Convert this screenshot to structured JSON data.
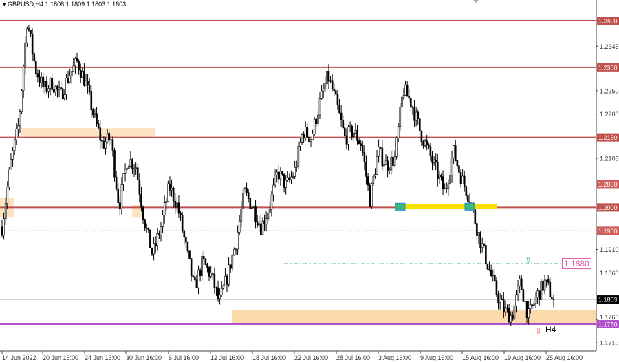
{
  "header": {
    "symbol": "GBPUSD,H4",
    "ohlc": "1.1808 1.1809 1.1803 1.1803"
  },
  "chart_data": {
    "type": "candlestick",
    "timeframe": "H4",
    "ylim": [
      1.169,
      1.2445
    ],
    "y_ticks": [
      "1.2345",
      "1.2250",
      "1.2200",
      "1.2105",
      "1.1910",
      "1.1860",
      "1.1760",
      "1.1710"
    ],
    "x_ticks": [
      "14 Jun 2022",
      "20 Jun 16:00",
      "24 Jun 16:00",
      "30 Jun 16:00",
      "6 Jul 16:00",
      "12 Jul 16:00",
      "18 Jul 16:00",
      "22 Jul 16:00",
      "28 Jul 16:00",
      "3 Aug 16:00",
      "9 Aug 16:00",
      "15 Aug 16:00",
      "19 Aug 16:00",
      "25 Aug 16:00"
    ],
    "approx_close_path": [
      1.1958,
      1.209,
      1.2179,
      1.24,
      1.2297,
      1.2253,
      1.2267,
      1.2238,
      1.2282,
      1.2312,
      1.2267,
      1.2194,
      1.2135,
      1.2149,
      1.2002,
      1.2105,
      1.209,
      1.1973,
      1.1899,
      1.1958,
      1.2046,
      1.2002,
      1.1914,
      1.1825,
      1.1884,
      1.1855,
      1.1796,
      1.1855,
      1.1928,
      1.2032,
      1.2002,
      1.1958,
      1.2002,
      1.2076,
      1.2046,
      1.2076,
      1.2164,
      1.2149,
      1.2223,
      1.2282,
      1.2223,
      1.2149,
      1.2164,
      1.2135,
      1.2017,
      1.212,
      1.209,
      1.2105,
      1.2253,
      1.2223,
      1.2164,
      1.212,
      1.2076,
      1.2032,
      1.212,
      1.2061,
      1.2017,
      1.1943,
      1.1884,
      1.1825,
      1.1781,
      1.1766,
      1.184,
      1.1766,
      1.1811,
      1.184,
      1.1803
    ],
    "levels": [
      {
        "price": 1.24,
        "label": "1.2400",
        "style": "solid",
        "color": "#c0504d"
      },
      {
        "price": 1.23,
        "label": "1.2300",
        "style": "solid",
        "color": "#c0504d"
      },
      {
        "price": 1.215,
        "label": "1.2150",
        "style": "solid",
        "color": "#c0504d"
      },
      {
        "price": 1.205,
        "label": "1.2050",
        "style": "dashed",
        "color": "#d06060"
      },
      {
        "price": 1.2,
        "label": "1.2000",
        "style": "solid",
        "color": "#c0504d"
      },
      {
        "price": 1.195,
        "label": "1.1950",
        "style": "dashed",
        "color": "#d06060"
      },
      {
        "price": 1.175,
        "label": "1.1750",
        "style": "solid",
        "color": "#b050c8"
      }
    ],
    "current_price": {
      "label": "1.1803",
      "price": 1.1803
    },
    "target": {
      "label": "1.1880",
      "price": 1.188,
      "color": "#e060b0"
    },
    "annotation": "H4",
    "zone_color": "#fbd9a8"
  }
}
